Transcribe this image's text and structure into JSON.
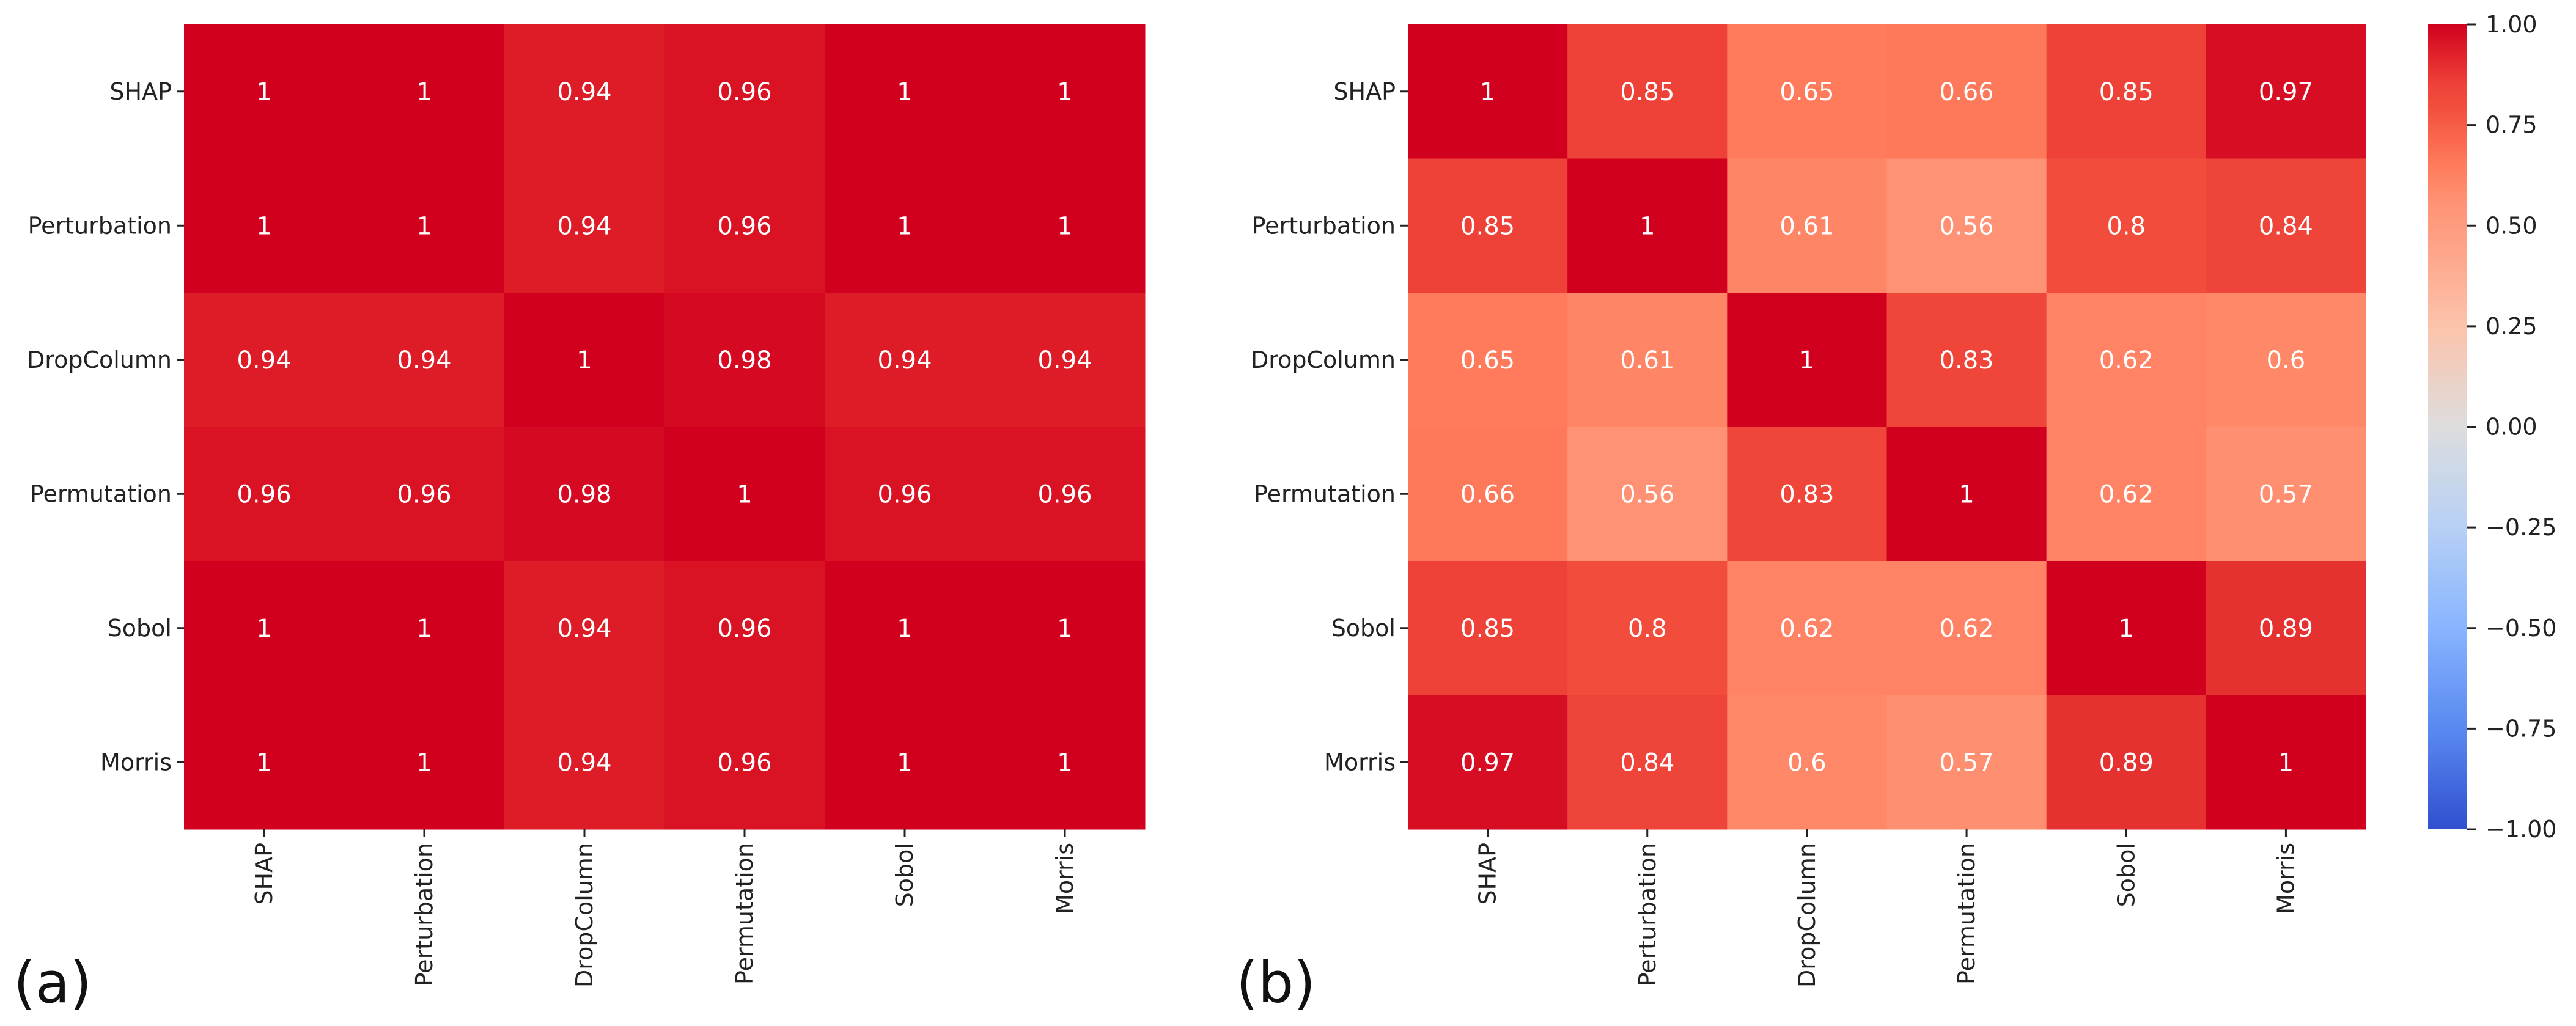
{
  "chart_data": [
    {
      "type": "heatmap",
      "panel_label": "(a)",
      "rows": [
        "SHAP",
        "Perturbation",
        "DropColumn",
        "Permutation",
        "Sobol",
        "Morris"
      ],
      "cols": [
        "SHAP",
        "Perturbation",
        "DropColumn",
        "Permutation",
        "Sobol",
        "Morris"
      ],
      "values": [
        [
          1,
          1,
          0.94,
          0.96,
          1,
          1
        ],
        [
          1,
          1,
          0.94,
          0.96,
          1,
          1
        ],
        [
          0.94,
          0.94,
          1,
          0.98,
          0.94,
          0.94
        ],
        [
          0.96,
          0.96,
          0.98,
          1,
          0.96,
          0.96
        ],
        [
          1,
          1,
          0.94,
          0.96,
          1,
          1
        ],
        [
          1,
          1,
          0.94,
          0.96,
          1,
          1
        ]
      ],
      "vmin": -1,
      "vmax": 1,
      "colormap": "coolwarm"
    },
    {
      "type": "heatmap",
      "panel_label": "(b)",
      "rows": [
        "SHAP",
        "Perturbation",
        "DropColumn",
        "Permutation",
        "Sobol",
        "Morris"
      ],
      "cols": [
        "SHAP",
        "Perturbation",
        "DropColumn",
        "Permutation",
        "Sobol",
        "Morris"
      ],
      "values": [
        [
          1,
          0.85,
          0.65,
          0.66,
          0.85,
          0.97
        ],
        [
          0.85,
          1,
          0.61,
          0.56,
          0.8,
          0.84
        ],
        [
          0.65,
          0.61,
          1,
          0.83,
          0.62,
          0.6
        ],
        [
          0.66,
          0.56,
          0.83,
          1,
          0.62,
          0.57
        ],
        [
          0.85,
          0.8,
          0.62,
          0.62,
          1,
          0.89
        ],
        [
          0.97,
          0.84,
          0.6,
          0.57,
          0.89,
          1
        ]
      ],
      "vmin": -1,
      "vmax": 1,
      "colormap": "coolwarm",
      "colorbar": {
        "ticks": [
          1.0,
          0.75,
          0.5,
          0.25,
          0.0,
          -0.25,
          -0.5,
          -0.75,
          -1.0
        ],
        "tick_labels": [
          "1.00",
          "0.75",
          "0.50",
          "0.25",
          "0.00",
          "−0.25",
          "−0.50",
          "−0.75",
          "−1.00"
        ]
      }
    }
  ]
}
